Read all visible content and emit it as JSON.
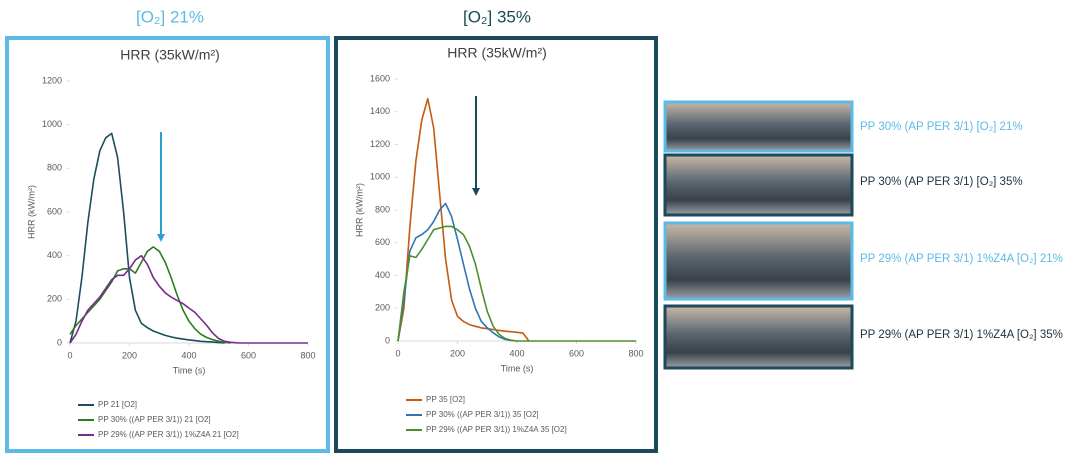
{
  "panels": [
    {
      "title": "[O₂] 21%"
    },
    {
      "title": "[O₂] 35%"
    }
  ],
  "photos": [
    {
      "label": "PP 30% (AP PER 3/1) [O₂] 21%"
    },
    {
      "label": "PP 30% (AP PER 3/1) [O₂] 35%"
    },
    {
      "label": "PP 29% (AP PER 3/1) 1%Z4A [O₂] 21%"
    },
    {
      "label": "PP 29% (AP PER 3/1) 1%Z4A [O₂] 35%"
    }
  ],
  "chart_data": [
    {
      "type": "line",
      "title": "HRR (35kW/m²)",
      "x_label": "Time (s)",
      "y_label": "HRR (kW/m²)",
      "x": [
        0,
        20,
        40,
        60,
        80,
        100,
        120,
        140,
        160,
        180,
        200,
        220,
        240,
        260,
        280,
        300,
        320,
        340,
        360,
        380,
        400,
        420,
        440,
        460,
        480,
        500,
        520,
        540,
        560,
        580,
        600,
        620,
        640,
        660,
        680,
        700,
        720,
        740,
        760,
        780,
        800
      ],
      "xlim": [
        0,
        800
      ],
      "xticks": [
        0,
        200,
        400,
        600,
        800
      ],
      "ylim": [
        0,
        1200
      ],
      "yticks": [
        0,
        200,
        400,
        600,
        800,
        1000,
        1200
      ],
      "grid": false,
      "series": [
        {
          "name": "PP 21 [O2]",
          "color": "#1d4d5e",
          "values": [
            0,
            100,
            300,
            550,
            750,
            880,
            940,
            960,
            850,
            600,
            300,
            150,
            90,
            70,
            55,
            45,
            35,
            28,
            22,
            18,
            14,
            11,
            8,
            6,
            4,
            2,
            0,
            null,
            null,
            null,
            null,
            null,
            null,
            null,
            null,
            null,
            null,
            null,
            null,
            null,
            null
          ]
        },
        {
          "name": "PP 30% ((AP PER 3/1)) 21 [O2]",
          "color": "#2f7a23",
          "values": [
            40,
            80,
            110,
            140,
            170,
            200,
            240,
            280,
            330,
            340,
            340,
            320,
            370,
            420,
            440,
            420,
            370,
            300,
            220,
            150,
            100,
            65,
            40,
            25,
            15,
            8,
            3,
            0,
            null,
            null,
            null,
            null,
            null,
            null,
            null,
            null,
            null,
            null,
            null,
            null,
            null
          ]
        },
        {
          "name": "PP 29% ((AP PER 3/1)) 1%Z4A 21 [O2]",
          "color": "#7a2a8f",
          "values": [
            0,
            40,
            100,
            150,
            180,
            210,
            250,
            290,
            310,
            310,
            340,
            380,
            400,
            360,
            300,
            260,
            230,
            210,
            195,
            180,
            160,
            140,
            110,
            80,
            45,
            20,
            8,
            3,
            1,
            0,
            0,
            0,
            0,
            0,
            0,
            0,
            0,
            0,
            0,
            0,
            0
          ]
        }
      ]
    },
    {
      "type": "line",
      "title": "HRR (35kW/m²)",
      "x_label": "Time (s)",
      "y_label": "HRR (kW/m²)",
      "x": [
        0,
        20,
        40,
        60,
        80,
        100,
        120,
        140,
        160,
        180,
        200,
        220,
        240,
        260,
        280,
        300,
        320,
        340,
        360,
        380,
        400,
        420,
        440,
        460,
        480,
        500,
        520,
        540,
        560,
        580,
        600,
        620,
        640,
        660,
        680,
        700,
        720,
        740,
        760,
        780,
        800
      ],
      "xlim": [
        0,
        800
      ],
      "xticks": [
        0,
        200,
        400,
        600,
        800
      ],
      "ylim": [
        0,
        1600
      ],
      "yticks": [
        0,
        200,
        400,
        600,
        800,
        1000,
        1200,
        1400,
        1600
      ],
      "grid": false,
      "series": [
        {
          "name": "PP 35 [O2]",
          "color": "#c55a11",
          "values": [
            0,
            200,
            700,
            1100,
            1350,
            1480,
            1300,
            900,
            500,
            250,
            150,
            120,
            100,
            90,
            80,
            75,
            70,
            65,
            60,
            57,
            53,
            48,
            0,
            null,
            null,
            null,
            null,
            null,
            null,
            null,
            null,
            null,
            null,
            null,
            null,
            null,
            null,
            null,
            null,
            null,
            null
          ]
        },
        {
          "name": "PP 30% ((AP PER 3/1)) 35 [O2]",
          "color": "#2e75b6",
          "values": [
            0,
            250,
            550,
            630,
            650,
            680,
            730,
            800,
            840,
            760,
            620,
            470,
            320,
            200,
            120,
            80,
            50,
            25,
            10,
            3,
            0,
            null,
            null,
            null,
            null,
            null,
            null,
            null,
            null,
            null,
            null,
            null,
            null,
            null,
            null,
            null,
            null,
            null,
            null,
            null,
            null
          ]
        },
        {
          "name": "PP 29% ((AP PER 3/1)) 1%Z4A 35 [O2]",
          "color": "#4e8f2d",
          "values": [
            0,
            300,
            520,
            510,
            560,
            620,
            680,
            690,
            700,
            700,
            680,
            650,
            580,
            470,
            320,
            180,
            90,
            40,
            15,
            5,
            0,
            0,
            0,
            0,
            0,
            0,
            0,
            0,
            0,
            0,
            0,
            0,
            0,
            0,
            0,
            0,
            0,
            0,
            0,
            0,
            0
          ]
        }
      ]
    }
  ]
}
